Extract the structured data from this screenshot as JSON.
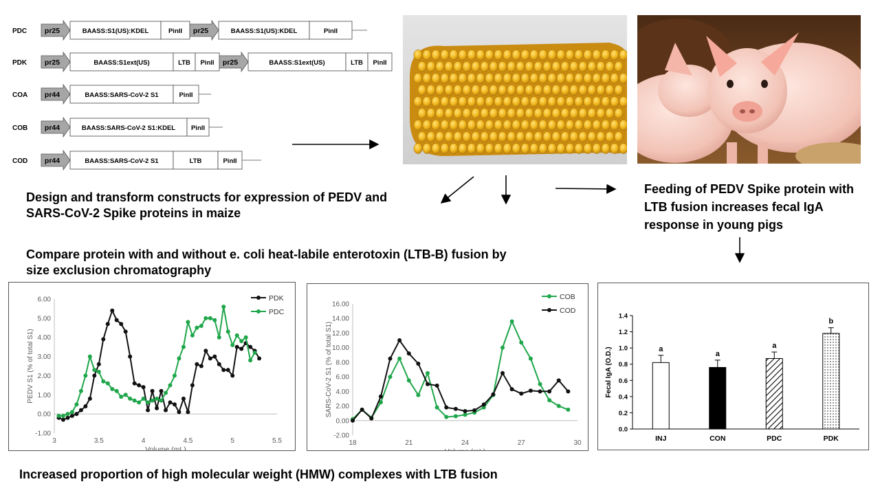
{
  "constructs": [
    {
      "name": "PDC",
      "blocks": [
        {
          "type": "promoter",
          "label": "pr25"
        },
        {
          "type": "box",
          "label": "BAASS:S1(US):KDEL"
        },
        {
          "type": "box",
          "label": "PinII"
        },
        {
          "type": "promoter",
          "label": "pr25"
        },
        {
          "type": "box",
          "label": "BAASS:S1(US):KDEL"
        },
        {
          "type": "box",
          "label": "PinII"
        }
      ]
    },
    {
      "name": "PDK",
      "blocks": [
        {
          "type": "promoter",
          "label": "pr25"
        },
        {
          "type": "box",
          "label": "BAASS:S1ext(US)"
        },
        {
          "type": "box",
          "label": "LTB"
        },
        {
          "type": "box",
          "label": "PinII"
        },
        {
          "type": "promoter",
          "label": "pr25"
        },
        {
          "type": "box",
          "label": "BAASS:S1ext(US)"
        },
        {
          "type": "box",
          "label": "LTB"
        },
        {
          "type": "box",
          "label": "PinII"
        }
      ]
    },
    {
      "name": "COA",
      "blocks": [
        {
          "type": "promoter",
          "label": "pr44"
        },
        {
          "type": "box",
          "label": "BAASS:SARS-CoV-2 S1"
        },
        {
          "type": "box",
          "label": "PinII"
        }
      ]
    },
    {
      "name": "COB",
      "blocks": [
        {
          "type": "promoter",
          "label": "pr44"
        },
        {
          "type": "box",
          "label": "BAASS:SARS-CoV-2 S1:KDEL"
        },
        {
          "type": "box",
          "label": "PinII"
        }
      ]
    },
    {
      "name": "COD",
      "blocks": [
        {
          "type": "promoter",
          "label": "pr44"
        },
        {
          "type": "box",
          "label": "BAASS:SARS-CoV-2 S1"
        },
        {
          "type": "box",
          "label": "LTB"
        },
        {
          "type": "box",
          "label": "PinII"
        }
      ]
    }
  ],
  "captions": {
    "design": "Design and transform constructs for expression of PEDV and SARS-CoV-2 Spike proteins in maize",
    "compare": "Compare protein with and without e. coli heat-labile enterotoxin (LTB-B) fusion by size exclusion chromatography",
    "feeding": "Feeding of PEDV Spike protein with LTB fusion increases fecal IgA response in young pigs",
    "hmw": "Increased proportion of high molecular weight (HMW) complexes with LTB fusion"
  },
  "colors": {
    "green": "#1fa64a",
    "black": "#111111",
    "promoter": "#a6a6a6"
  },
  "chart_data": [
    {
      "type": "line",
      "xlabel": "Volume (mL)",
      "ylabel": "PEDV S1 (% of total S1)",
      "xlim": [
        3,
        5.5
      ],
      "ylim": [
        -1,
        6
      ],
      "xticks": [
        "3",
        "3.5",
        "4",
        "4.5",
        "5",
        "5.5"
      ],
      "yticks": [
        "-1.00",
        "0.00",
        "1.00",
        "2.00",
        "3.00",
        "4.00",
        "5.00",
        "6.00"
      ],
      "legend_position": "top-right",
      "series": [
        {
          "name": "PDK",
          "color": "#111111",
          "x": [
            3.05,
            3.1,
            3.15,
            3.2,
            3.25,
            3.3,
            3.35,
            3.4,
            3.45,
            3.5,
            3.55,
            3.6,
            3.65,
            3.7,
            3.75,
            3.8,
            3.85,
            3.9,
            3.95,
            4.0,
            4.05,
            4.1,
            4.15,
            4.2,
            4.25,
            4.3,
            4.35,
            4.4,
            4.45,
            4.5,
            4.55,
            4.6,
            4.65,
            4.7,
            4.75,
            4.8,
            4.85,
            4.9,
            4.95,
            5.0,
            5.05,
            5.1,
            5.15,
            5.2,
            5.25,
            5.3
          ],
          "y": [
            -0.2,
            -0.3,
            -0.2,
            -0.1,
            0.0,
            0.2,
            0.4,
            0.8,
            2.0,
            2.6,
            3.9,
            4.7,
            5.4,
            4.9,
            4.7,
            4.3,
            3.0,
            1.6,
            1.5,
            1.4,
            0.2,
            1.2,
            0.3,
            1.2,
            0.2,
            0.6,
            0.5,
            0.1,
            0.8,
            0.1,
            1.5,
            2.6,
            2.5,
            3.3,
            2.9,
            3.0,
            2.6,
            2.3,
            2.3,
            2.0,
            3.5,
            3.4,
            3.7,
            3.5,
            3.3,
            2.9
          ]
        },
        {
          "name": "PDC",
          "color": "#1fa64a",
          "x": [
            3.05,
            3.1,
            3.15,
            3.2,
            3.25,
            3.3,
            3.35,
            3.4,
            3.45,
            3.5,
            3.55,
            3.6,
            3.65,
            3.7,
            3.75,
            3.8,
            3.85,
            3.9,
            3.95,
            4.0,
            4.05,
            4.1,
            4.15,
            4.2,
            4.25,
            4.3,
            4.35,
            4.4,
            4.45,
            4.5,
            4.55,
            4.6,
            4.65,
            4.7,
            4.75,
            4.8,
            4.85,
            4.9,
            4.95,
            5.0,
            5.05,
            5.1,
            5.15,
            5.2,
            5.25
          ],
          "y": [
            -0.1,
            -0.1,
            0.0,
            0.1,
            0.5,
            1.2,
            2.0,
            3.0,
            2.3,
            2.2,
            1.7,
            1.6,
            1.3,
            1.2,
            0.9,
            1.0,
            0.8,
            0.7,
            0.6,
            0.8,
            0.6,
            0.7,
            0.8,
            0.7,
            1.1,
            1.5,
            2.0,
            2.9,
            3.5,
            4.8,
            4.1,
            4.5,
            4.6,
            5.0,
            5.0,
            4.9,
            4.0,
            5.6,
            4.3,
            3.6,
            4.1,
            3.8,
            4.0,
            2.8,
            3.2
          ]
        }
      ]
    },
    {
      "type": "line",
      "xlabel": "Volume (mL)",
      "ylabel": "SARS-CoV-2  S1 (% of total S1)",
      "xlim": [
        18,
        30
      ],
      "ylim": [
        -2,
        16
      ],
      "xticks": [
        "18",
        "21",
        "24",
        "27",
        "30"
      ],
      "yticks": [
        "-2.00",
        "0.00",
        "2.00",
        "4.00",
        "6.00",
        "8.00",
        "10.00",
        "12.00",
        "14.00",
        "16.00"
      ],
      "legend_position": "top-right",
      "series": [
        {
          "name": "COB",
          "color": "#1fa64a",
          "x": [
            18.0,
            18.5,
            19.0,
            19.5,
            20.0,
            20.5,
            21.0,
            21.5,
            22.0,
            22.5,
            23.0,
            23.5,
            24.0,
            24.5,
            25.0,
            25.5,
            26.0,
            26.5,
            27.0,
            27.5,
            28.0,
            28.5,
            29.0,
            29.5
          ],
          "y": [
            0.2,
            1.5,
            0.4,
            2.5,
            6.0,
            8.5,
            5.5,
            3.5,
            6.5,
            1.8,
            0.5,
            0.6,
            0.8,
            1.1,
            1.8,
            3.5,
            10.0,
            13.6,
            10.7,
            8.5,
            5.0,
            2.8,
            2.0,
            1.5
          ]
        },
        {
          "name": "COD",
          "color": "#111111",
          "x": [
            18.0,
            18.5,
            19.0,
            19.5,
            20.0,
            20.5,
            21.0,
            21.5,
            22.0,
            22.5,
            23.0,
            23.5,
            24.0,
            24.5,
            25.0,
            25.5,
            26.0,
            26.5,
            27.0,
            27.5,
            28.0,
            28.5,
            29.0,
            29.5
          ],
          "y": [
            0.0,
            1.5,
            0.3,
            3.3,
            8.5,
            11.0,
            9.2,
            7.8,
            5.0,
            4.8,
            1.8,
            1.6,
            1.3,
            1.4,
            2.2,
            3.6,
            6.5,
            4.3,
            3.7,
            4.1,
            4.0,
            4.0,
            5.5,
            4.0
          ]
        }
      ]
    },
    {
      "type": "bar",
      "ylabel": "Fecal IgA (O.D.)",
      "ylim": [
        0,
        1.4
      ],
      "yticks": [
        "0.0",
        "0.2",
        "0.4",
        "0.6",
        "0.8",
        "1.0",
        "1.2",
        "1.4"
      ],
      "categories": [
        "INJ",
        "CON",
        "PDC",
        "PDK"
      ],
      "values": [
        0.82,
        0.76,
        0.87,
        1.18
      ],
      "errors": [
        0.09,
        0.09,
        0.08,
        0.07
      ],
      "significance": [
        "a",
        "a",
        "a",
        "b"
      ],
      "fills": [
        "white",
        "black",
        "hatched",
        "dotted"
      ]
    }
  ]
}
